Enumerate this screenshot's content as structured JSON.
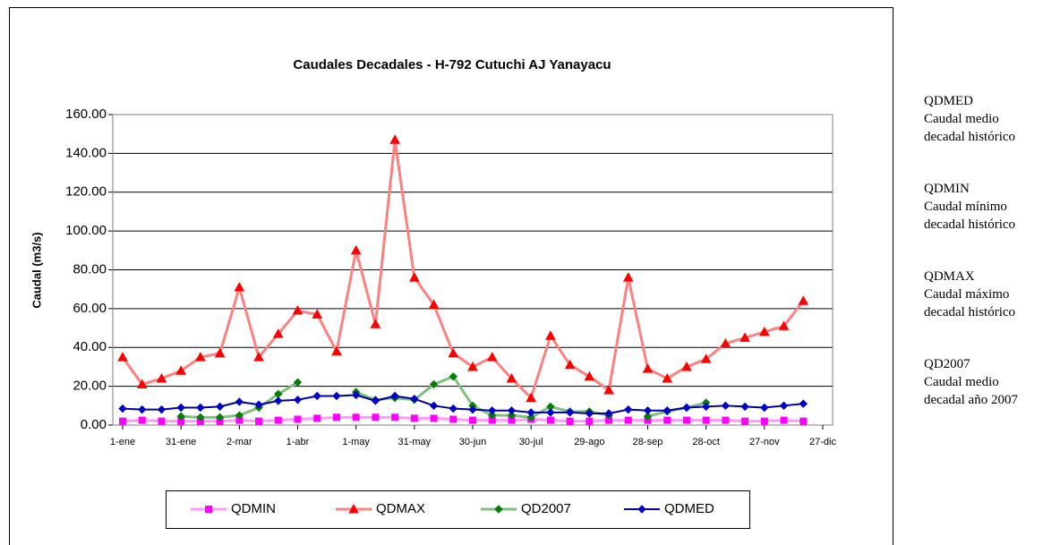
{
  "chart_data": {
    "type": "line",
    "title": "Caudales Decadales - H-792 Cutuchi AJ Yanayacu",
    "y_label": "Caudal (m3/s)",
    "categories": [
      "1-ene",
      null,
      null,
      "31-ene",
      null,
      null,
      "2-mar",
      null,
      null,
      "1-abr",
      null,
      null,
      "1-may",
      null,
      null,
      "31-may",
      null,
      null,
      "30-jun",
      null,
      null,
      "30-jul",
      null,
      null,
      "29-ago",
      null,
      null,
      "28-sep",
      null,
      null,
      "28-oct",
      null,
      null,
      "27-nov",
      null,
      null,
      "27-dic"
    ],
    "ylim": [
      0,
      160
    ],
    "yticks": [
      {
        "value": 0,
        "label": "0.00"
      },
      {
        "value": 20,
        "label": "20.00"
      },
      {
        "value": 40,
        "label": "40.00"
      },
      {
        "value": 60,
        "label": "60.00"
      },
      {
        "value": 80,
        "label": "80.00"
      },
      {
        "value": 100,
        "label": "100.00"
      },
      {
        "value": 120,
        "label": "120.00"
      },
      {
        "value": 140,
        "label": "140.00"
      },
      {
        "value": 160,
        "label": "160.00"
      }
    ],
    "grid": true,
    "legend": "bottom",
    "series": [
      {
        "name": "QDMIN",
        "color": "#ff00ff",
        "line_color": "#ff99ff",
        "marker": "square",
        "values": [
          2,
          2.5,
          2,
          2,
          2,
          2,
          2.5,
          2,
          2.5,
          3,
          3.5,
          4,
          4,
          4,
          4,
          3.5,
          3.5,
          3,
          2.5,
          2.5,
          2.5,
          3,
          2.5,
          2,
          2,
          2.5,
          2.5,
          2.5,
          2.5,
          2.5,
          2.5,
          2.5,
          2,
          2,
          2.5,
          2,
          null
        ]
      },
      {
        "name": "QDMAX",
        "color": "#ff0000",
        "line_color": "#ff8080",
        "marker": "triangle",
        "values": [
          35,
          21,
          24,
          28,
          35,
          37,
          71,
          35,
          47,
          59,
          57,
          38,
          90,
          52,
          147,
          76,
          62,
          37,
          30,
          35,
          24,
          14,
          46,
          31,
          25,
          18,
          76,
          29,
          24,
          30,
          34,
          42,
          45,
          48,
          51,
          64,
          null
        ]
      },
      {
        "name": "QD2007",
        "color": "#008000",
        "line_color": "#80c080",
        "marker": "diamond",
        "values": [
          null,
          null,
          null,
          4.5,
          4,
          4,
          5,
          9,
          16,
          22,
          null,
          null,
          17,
          13,
          14,
          13,
          21,
          25,
          10,
          5,
          5,
          4,
          9.5,
          7,
          7,
          5,
          null,
          4.5,
          7,
          9,
          11.5,
          null,
          null,
          null,
          null,
          null,
          null
        ]
      },
      {
        "name": "QDMED",
        "color": "#0000cc",
        "line_color": "#000099",
        "marker": "diamond",
        "values": [
          8.5,
          8,
          8,
          9,
          9,
          9.5,
          12,
          10.5,
          12.5,
          13,
          15,
          15,
          15.5,
          12.5,
          15,
          13.5,
          10,
          8.5,
          8,
          7.5,
          7.5,
          6.5,
          6.5,
          6.5,
          6,
          6,
          8,
          7.5,
          7.5,
          9,
          9.5,
          10,
          9.5,
          9,
          10,
          11,
          null
        ]
      }
    ]
  },
  "notes": [
    {
      "code": "QDMED",
      "lines": [
        "Caudal medio",
        "decadal histórico"
      ]
    },
    {
      "code": "QDMIN",
      "lines": [
        "Caudal mínimo",
        "decadal histórico"
      ]
    },
    {
      "code": "QDMAX",
      "lines": [
        "Caudal máximo",
        "decadal histórico"
      ]
    },
    {
      "code": "QD2007",
      "lines": [
        "Caudal medio",
        "decadal año 2007"
      ]
    }
  ]
}
